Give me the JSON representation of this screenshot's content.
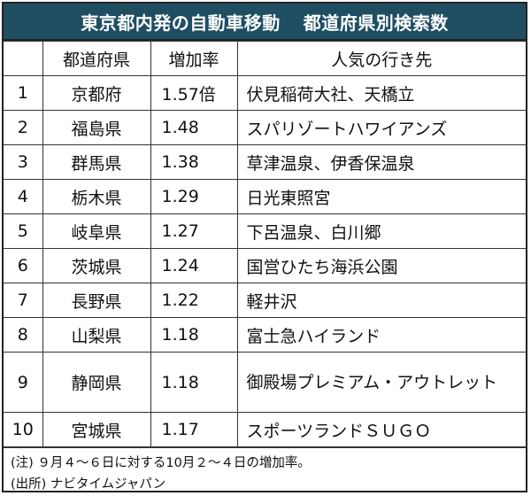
{
  "title": {
    "part1": "東京都内発の自動車移動",
    "part2": "都道府県別検索数"
  },
  "table": {
    "headers": {
      "rank": "",
      "prefecture": "都道府県",
      "rate": "増加率",
      "destinations": "人気の行き先"
    },
    "rows": [
      {
        "rank": "1",
        "prefecture": "京都府",
        "rate": "1.57倍",
        "destinations": "伏見稲荷大社、天橋立"
      },
      {
        "rank": "2",
        "prefecture": "福島県",
        "rate": "1.48",
        "destinations": "スパリゾートハワイアンズ"
      },
      {
        "rank": "3",
        "prefecture": "群馬県",
        "rate": "1.38",
        "destinations": "草津温泉、伊香保温泉"
      },
      {
        "rank": "4",
        "prefecture": "栃木県",
        "rate": "1.29",
        "destinations": "日光東照宮"
      },
      {
        "rank": "5",
        "prefecture": "岐阜県",
        "rate": "1.27",
        "destinations": "下呂温泉、白川郷"
      },
      {
        "rank": "6",
        "prefecture": "茨城県",
        "rate": "1.24",
        "destinations": "国営ひたち海浜公園"
      },
      {
        "rank": "7",
        "prefecture": "長野県",
        "rate": "1.22",
        "destinations": "軽井沢"
      },
      {
        "rank": "8",
        "prefecture": "山梨県",
        "rate": "1.18",
        "destinations": "富士急ハイランド"
      },
      {
        "rank": "9",
        "prefecture": "静岡県",
        "rate": "1.18",
        "destinations": "御殿場プレミアム・アウトレット"
      },
      {
        "rank": "10",
        "prefecture": "宮城県",
        "rate": "1.17",
        "destinations": "スポーツランドＳＵＧＯ"
      }
    ]
  },
  "notes": {
    "note": "(注) ９月４～６日に対する10月２～４日の増加率。",
    "source": "(出所) ナビタイムジャパン"
  },
  "colors": {
    "title_background": "#1f4e63",
    "title_text": "#ffffff",
    "border": "#222222"
  }
}
